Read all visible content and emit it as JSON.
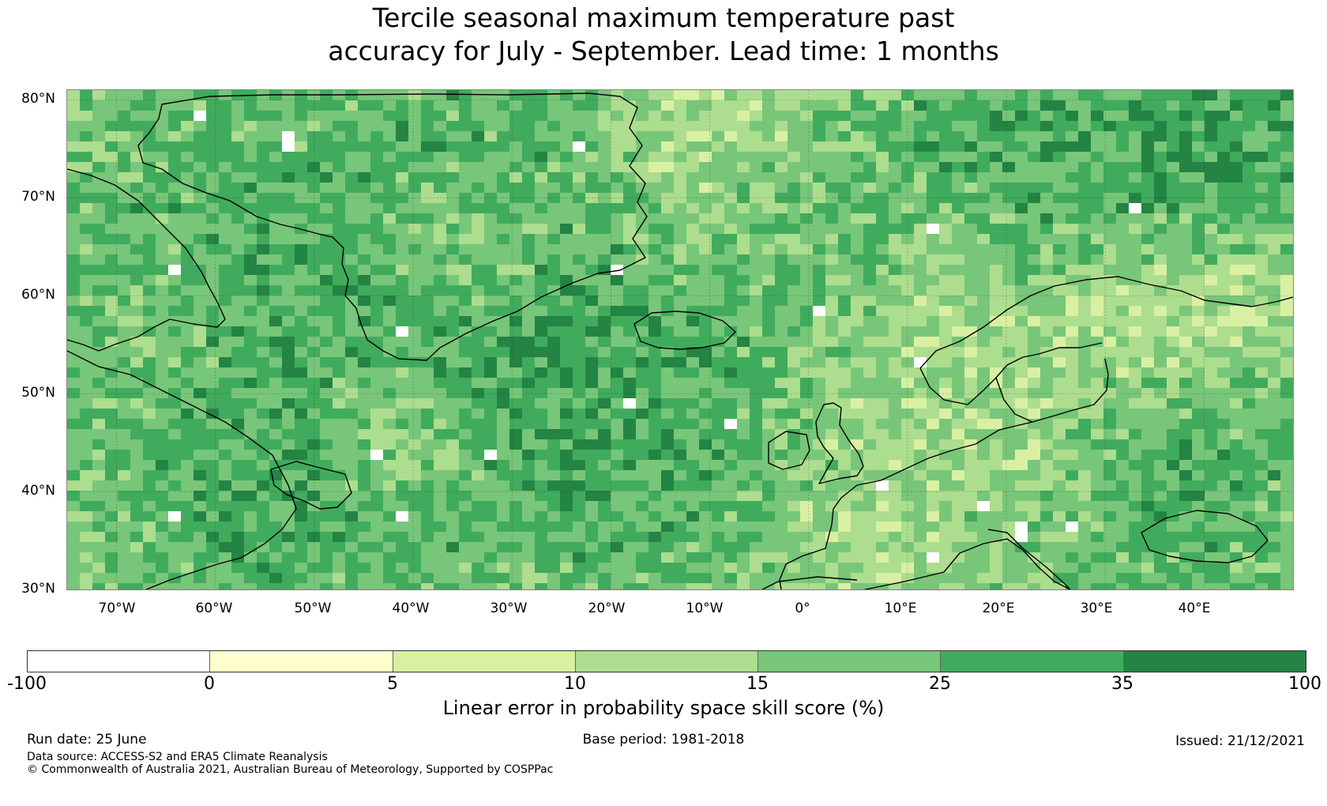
{
  "title": {
    "line1": "Tercile seasonal maximum temperature past",
    "line2": "accuracy for July - September. Lead time: 1 months"
  },
  "map": {
    "lat_labels": [
      "80°N",
      "70°N",
      "60°N",
      "50°N",
      "40°N",
      "30°N"
    ],
    "lon_labels": [
      "70°W",
      "60°W",
      "50°W",
      "40°W",
      "30°W",
      "20°W",
      "10°W",
      "0°",
      "10°E",
      "20°E",
      "30°E",
      "40°E"
    ],
    "gridlines": true,
    "coastlines": true
  },
  "colorbar": {
    "bins": [
      {
        "from": -100,
        "to": 0,
        "color": "#ffffff"
      },
      {
        "from": 0,
        "to": 5,
        "color": "#ffffcc"
      },
      {
        "from": 5,
        "to": 10,
        "color": "#d9f0a3"
      },
      {
        "from": 10,
        "to": 15,
        "color": "#addd8e"
      },
      {
        "from": 15,
        "to": 25,
        "color": "#78c679"
      },
      {
        "from": 25,
        "to": 35,
        "color": "#41ab5d"
      },
      {
        "from": 35,
        "to": 100,
        "color": "#238443"
      }
    ],
    "tick_labels": [
      "-100",
      "0",
      "5",
      "10",
      "15",
      "25",
      "35",
      "100"
    ],
    "label": "Linear error in probability space skill score (%)"
  },
  "footer": {
    "run_date": "Run date: 25 June",
    "base_period": "Base period: 1981-2018",
    "issued": "Issued: 21/12/2021",
    "data_source": "Data source: ACCESS-S2 and ERA5 Climate Reanalysis",
    "copyright": "© Commonwealth of Australia 2021, Australian Bureau of Meteorology, Supported by COSPPac"
  }
}
